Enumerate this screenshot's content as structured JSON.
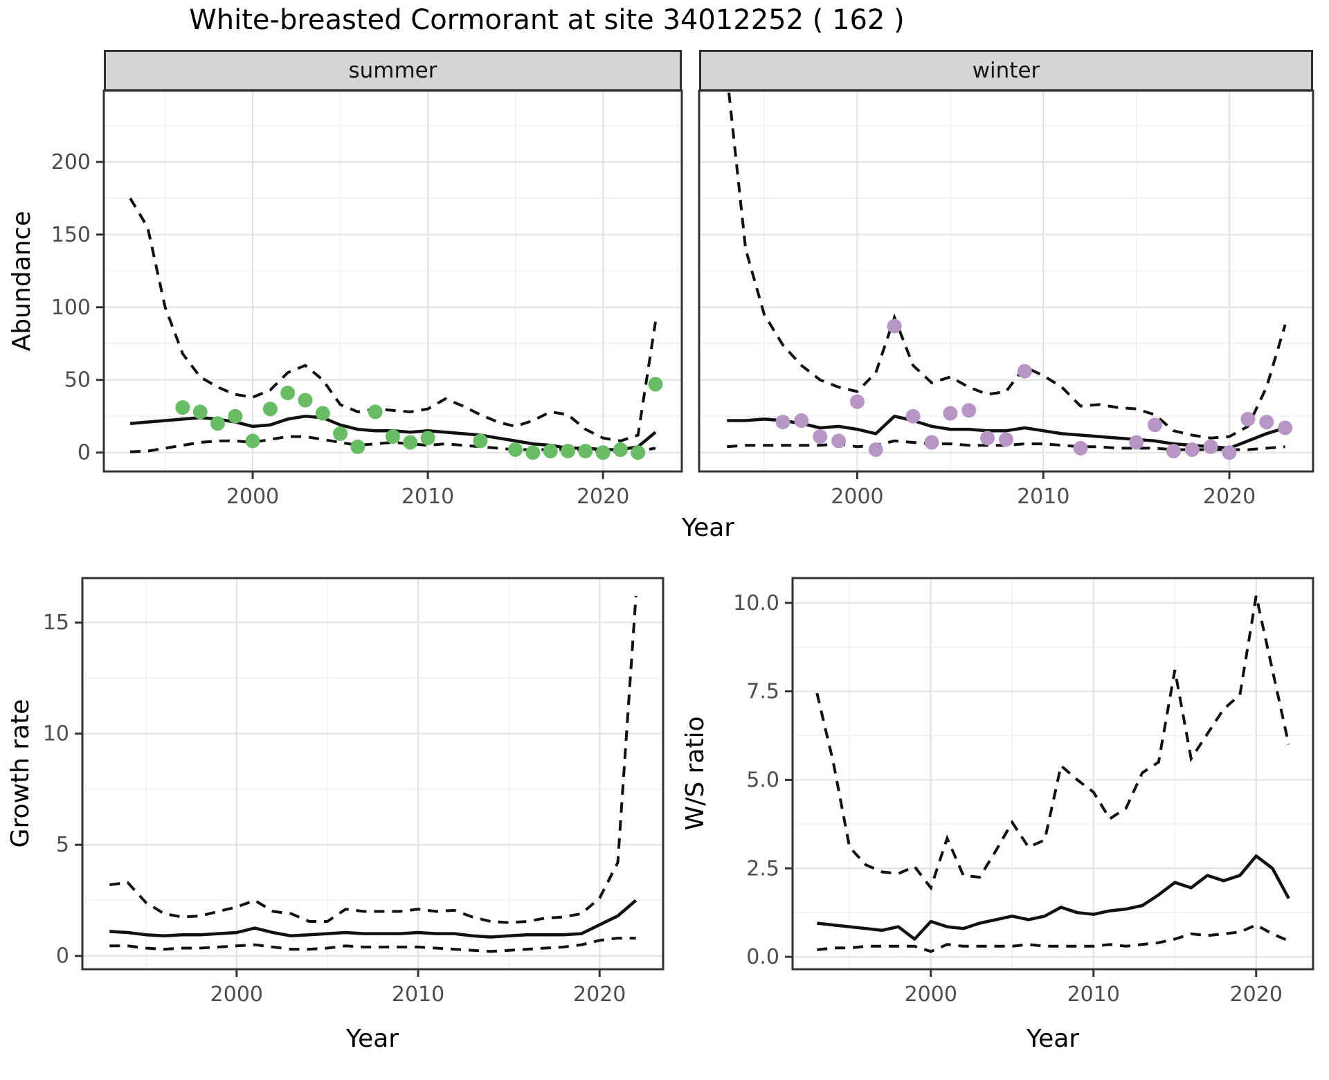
{
  "title": "White-breasted Cormorant at site 34012252 ( 162 )",
  "facets": [
    "summer",
    "winter"
  ],
  "axes": {
    "year": "Year",
    "abundance": "Abundance",
    "growth": "Growth rate",
    "ws": "W/S ratio"
  },
  "style": {
    "summer_point_color": "#68bc64",
    "winter_point_color": "#b795c4",
    "line_color": "#111111",
    "grid_major_color": "#e3e3e3",
    "grid_minor_color": "#f0f0f0",
    "tick_text_color": "#4d4d4d",
    "panel_border_color": "#333333",
    "strip_background": "#d5d5d5"
  },
  "chart_data": [
    {
      "id": "abundance-summer",
      "type": "line",
      "facet": "summer",
      "ylabel": "Abundance",
      "xlabel": "Year",
      "x_domain": [
        1991.5,
        2024.5
      ],
      "y_domain": [
        -13,
        249
      ],
      "x_ticks": [
        2000,
        2010,
        2020
      ],
      "x_tick_labels": [
        "2000",
        "2010",
        "2020"
      ],
      "x_minor": [
        1995,
        2005,
        2015
      ],
      "y_ticks": [
        0,
        50,
        100,
        150,
        200
      ],
      "y_tick_labels": [
        "0",
        "50",
        "100",
        "150",
        "200"
      ],
      "y_minor": [
        25,
        75,
        125,
        175,
        225
      ],
      "point_color": "#68bc64",
      "series": {
        "points": {
          "x": [
            1996,
            1997,
            1998,
            1999,
            2000,
            2001,
            2002,
            2003,
            2004,
            2005,
            2006,
            2007,
            2008,
            2009,
            2010,
            2013,
            2015,
            2016,
            2017,
            2018,
            2019,
            2020,
            2021,
            2022,
            2023
          ],
          "y": [
            31,
            28,
            20,
            25,
            8,
            30,
            41,
            36,
            27,
            13,
            4,
            28,
            11,
            7,
            10,
            8,
            2,
            0,
            1,
            1,
            1,
            0,
            2,
            0,
            47
          ]
        },
        "fit": {
          "x": [
            1993,
            1994,
            1995,
            1996,
            1997,
            1998,
            1999,
            2000,
            2001,
            2002,
            2003,
            2004,
            2005,
            2006,
            2007,
            2008,
            2009,
            2010,
            2011,
            2012,
            2013,
            2014,
            2015,
            2016,
            2017,
            2018,
            2019,
            2020,
            2021,
            2022,
            2023
          ],
          "y": [
            20,
            21,
            22,
            23,
            24,
            23,
            21,
            18,
            19,
            23,
            25,
            24,
            19,
            16,
            15,
            15,
            14,
            15,
            14,
            13,
            12,
            10,
            8,
            6,
            5,
            3,
            3,
            2,
            2,
            4,
            14
          ]
        },
        "upper": {
          "x": [
            1993,
            1994,
            1995,
            1996,
            1997,
            1998,
            1999,
            2000,
            2001,
            2002,
            2003,
            2004,
            2005,
            2006,
            2007,
            2008,
            2009,
            2010,
            2011,
            2012,
            2013,
            2014,
            2015,
            2016,
            2017,
            2018,
            2019,
            2020,
            2021,
            2022,
            2023
          ],
          "y": [
            175,
            155,
            100,
            68,
            52,
            45,
            40,
            38,
            43,
            55,
            60,
            50,
            33,
            28,
            30,
            29,
            28,
            30,
            37,
            32,
            26,
            21,
            18,
            22,
            28,
            26,
            16,
            10,
            8,
            12,
            90
          ]
        },
        "lower": {
          "x": [
            1993,
            1994,
            1995,
            1996,
            1997,
            1998,
            1999,
            2000,
            2001,
            2002,
            2003,
            2004,
            2005,
            2006,
            2007,
            2008,
            2009,
            2010,
            2011,
            2012,
            2013,
            2014,
            2015,
            2016,
            2017,
            2018,
            2019,
            2020,
            2021,
            2022,
            2023
          ],
          "y": [
            0.5,
            1,
            3,
            5,
            7,
            8,
            8,
            7,
            9,
            11,
            11,
            9,
            7,
            5,
            6,
            7,
            6,
            5,
            6,
            5,
            4,
            3,
            2,
            2,
            2,
            2,
            2,
            1,
            1,
            1,
            3
          ]
        }
      }
    },
    {
      "id": "abundance-winter",
      "type": "line",
      "facet": "winter",
      "ylabel": "Abundance",
      "xlabel": "Year",
      "x_domain": [
        1991.5,
        2024.5
      ],
      "y_domain": [
        -13,
        249
      ],
      "x_ticks": [
        2000,
        2010,
        2020
      ],
      "x_tick_labels": [
        "2000",
        "2010",
        "2020"
      ],
      "x_minor": [
        1995,
        2005,
        2015
      ],
      "y_ticks": [
        0,
        50,
        100,
        150,
        200
      ],
      "y_tick_labels": [
        "0",
        "50",
        "100",
        "150",
        "200"
      ],
      "y_minor": [
        25,
        75,
        125,
        175,
        225
      ],
      "point_color": "#b795c4",
      "series": {
        "points": {
          "x": [
            1996,
            1997,
            1998,
            1999,
            2000,
            2001,
            2002,
            2003,
            2004,
            2005,
            2006,
            2007,
            2008,
            2009,
            2012,
            2015,
            2016,
            2017,
            2018,
            2019,
            2020,
            2021,
            2022,
            2023
          ],
          "y": [
            21,
            22,
            11,
            8,
            35,
            2,
            87,
            25,
            7,
            27,
            29,
            10,
            9,
            56,
            3,
            7,
            19,
            1,
            2,
            4,
            0,
            23,
            21,
            17
          ]
        },
        "fit": {
          "x": [
            1993,
            1994,
            1995,
            1996,
            1997,
            1998,
            1999,
            2000,
            2001,
            2002,
            2003,
            2004,
            2005,
            2006,
            2007,
            2008,
            2009,
            2010,
            2011,
            2012,
            2013,
            2014,
            2015,
            2016,
            2017,
            2018,
            2019,
            2020,
            2021,
            2022,
            2023
          ],
          "y": [
            22,
            22,
            23,
            22,
            20,
            17,
            18,
            16,
            13,
            25,
            22,
            18,
            16,
            16,
            15,
            15,
            17,
            15,
            13,
            12,
            11,
            10,
            9,
            8,
            6,
            5,
            4,
            3,
            8,
            13,
            17
          ]
        },
        "upper": {
          "x": [
            1993,
            1994,
            1995,
            1996,
            1997,
            1998,
            1999,
            2000,
            2001,
            2002,
            2003,
            2004,
            2005,
            2006,
            2007,
            2008,
            2009,
            2010,
            2011,
            2012,
            2013,
            2014,
            2015,
            2016,
            2017,
            2018,
            2019,
            2020,
            2021,
            2022,
            2023
          ],
          "y": [
            260,
            140,
            95,
            74,
            60,
            50,
            45,
            42,
            55,
            93,
            60,
            48,
            52,
            45,
            40,
            42,
            59,
            53,
            45,
            32,
            33,
            31,
            30,
            26,
            15,
            12,
            10,
            11,
            18,
            45,
            88
          ]
        },
        "lower": {
          "x": [
            1993,
            1994,
            1995,
            1996,
            1997,
            1998,
            1999,
            2000,
            2001,
            2002,
            2003,
            2004,
            2005,
            2006,
            2007,
            2008,
            2009,
            2010,
            2011,
            2012,
            2013,
            2014,
            2015,
            2016,
            2017,
            2018,
            2019,
            2020,
            2021,
            2022,
            2023
          ],
          "y": [
            4,
            5,
            5,
            5,
            5,
            5,
            6,
            4,
            5,
            8,
            7,
            6,
            6,
            5,
            5,
            5,
            6,
            6,
            5,
            4,
            4,
            3,
            3,
            3,
            2,
            2,
            2,
            2,
            2,
            3,
            4
          ]
        }
      }
    },
    {
      "id": "growth-rate",
      "type": "line",
      "facet": null,
      "ylabel": "Growth rate",
      "xlabel": "Year",
      "x_domain": [
        1991.5,
        2023.5
      ],
      "y_domain": [
        -0.6,
        17.0
      ],
      "x_ticks": [
        2000,
        2010,
        2020
      ],
      "x_tick_labels": [
        "2000",
        "2010",
        "2020"
      ],
      "x_minor": [
        1995,
        2005,
        2015
      ],
      "y_ticks": [
        0,
        5,
        10,
        15
      ],
      "y_tick_labels": [
        "0",
        "5",
        "10",
        "15"
      ],
      "y_minor": [
        2.5,
        7.5,
        12.5
      ],
      "point_color": null,
      "series": {
        "fit": {
          "x": [
            1993,
            1994,
            1995,
            1996,
            1997,
            1998,
            1999,
            2000,
            2001,
            2002,
            2003,
            2004,
            2005,
            2006,
            2007,
            2008,
            2009,
            2010,
            2011,
            2012,
            2013,
            2014,
            2015,
            2016,
            2017,
            2018,
            2019,
            2020,
            2021,
            2022
          ],
          "y": [
            1.1,
            1.05,
            0.95,
            0.9,
            0.95,
            0.95,
            1.0,
            1.05,
            1.25,
            1.05,
            0.9,
            0.95,
            1.0,
            1.05,
            1.0,
            1.0,
            1.0,
            1.05,
            1.0,
            1.0,
            0.9,
            0.85,
            0.9,
            0.95,
            0.95,
            0.95,
            1.0,
            1.4,
            1.8,
            2.5
          ]
        },
        "upper": {
          "x": [
            1993,
            1994,
            1995,
            1996,
            1997,
            1998,
            1999,
            2000,
            2001,
            2002,
            2003,
            2004,
            2005,
            2006,
            2007,
            2008,
            2009,
            2010,
            2011,
            2012,
            2013,
            2014,
            2015,
            2016,
            2017,
            2018,
            2019,
            2020,
            2021,
            2022
          ],
          "y": [
            3.2,
            3.3,
            2.4,
            1.9,
            1.75,
            1.8,
            2.0,
            2.2,
            2.5,
            2.0,
            1.9,
            1.55,
            1.55,
            2.1,
            2.0,
            2.0,
            2.0,
            2.1,
            2.0,
            2.05,
            1.75,
            1.55,
            1.5,
            1.55,
            1.7,
            1.75,
            1.9,
            2.6,
            4.2,
            16.2
          ]
        },
        "lower": {
          "x": [
            1993,
            1994,
            1995,
            1996,
            1997,
            1998,
            1999,
            2000,
            2001,
            2002,
            2003,
            2004,
            2005,
            2006,
            2007,
            2008,
            2009,
            2010,
            2011,
            2012,
            2013,
            2014,
            2015,
            2016,
            2017,
            2018,
            2019,
            2020,
            2021,
            2022
          ],
          "y": [
            0.45,
            0.45,
            0.35,
            0.3,
            0.35,
            0.35,
            0.4,
            0.45,
            0.5,
            0.4,
            0.3,
            0.3,
            0.35,
            0.45,
            0.4,
            0.4,
            0.4,
            0.4,
            0.35,
            0.3,
            0.25,
            0.2,
            0.25,
            0.3,
            0.35,
            0.4,
            0.5,
            0.7,
            0.8,
            0.8
          ]
        }
      }
    },
    {
      "id": "ws-ratio",
      "type": "line",
      "facet": null,
      "ylabel": "W/S ratio",
      "xlabel": "Year",
      "x_domain": [
        1991.5,
        2023.5
      ],
      "y_domain": [
        -0.35,
        10.7
      ],
      "x_ticks": [
        2000,
        2010,
        2020
      ],
      "x_tick_labels": [
        "2000",
        "2010",
        "2020"
      ],
      "x_minor": [
        1995,
        2005,
        2015
      ],
      "y_ticks": [
        0,
        2.5,
        5,
        7.5,
        10
      ],
      "y_tick_labels": [
        "0.0",
        "2.5",
        "5.0",
        "7.5",
        "10.0"
      ],
      "y_minor": [
        1.25,
        3.75,
        6.25,
        8.75
      ],
      "point_color": null,
      "series": {
        "fit": {
          "x": [
            1993,
            1994,
            1995,
            1996,
            1997,
            1998,
            1999,
            2000,
            2001,
            2002,
            2003,
            2004,
            2005,
            2006,
            2007,
            2008,
            2009,
            2010,
            2011,
            2012,
            2013,
            2014,
            2015,
            2016,
            2017,
            2018,
            2019,
            2020,
            2021,
            2022
          ],
          "y": [
            0.95,
            0.9,
            0.85,
            0.8,
            0.75,
            0.85,
            0.5,
            1.0,
            0.85,
            0.8,
            0.95,
            1.05,
            1.15,
            1.05,
            1.15,
            1.4,
            1.25,
            1.2,
            1.3,
            1.35,
            1.45,
            1.75,
            2.1,
            1.95,
            2.3,
            2.15,
            2.3,
            2.85,
            2.5,
            1.65
          ]
        },
        "upper": {
          "x": [
            1993,
            1994,
            1995,
            1996,
            1997,
            1998,
            1999,
            2000,
            2001,
            2002,
            2003,
            2004,
            2005,
            2006,
            2007,
            2008,
            2009,
            2010,
            2011,
            2012,
            2013,
            2014,
            2015,
            2016,
            2017,
            2018,
            2019,
            2020,
            2021,
            2022
          ],
          "y": [
            7.45,
            5.5,
            3.1,
            2.6,
            2.4,
            2.35,
            2.55,
            1.95,
            3.35,
            2.3,
            2.25,
            3.0,
            3.8,
            3.1,
            3.3,
            5.4,
            5.0,
            4.65,
            3.9,
            4.2,
            5.2,
            5.5,
            8.1,
            5.6,
            6.3,
            7.0,
            7.4,
            10.2,
            8.1,
            6.0
          ]
        },
        "lower": {
          "x": [
            1993,
            1994,
            1995,
            1996,
            1997,
            1998,
            1999,
            2000,
            2001,
            2002,
            2003,
            2004,
            2005,
            2006,
            2007,
            2008,
            2009,
            2010,
            2011,
            2012,
            2013,
            2014,
            2015,
            2016,
            2017,
            2018,
            2019,
            2020,
            2021,
            2022
          ],
          "y": [
            0.2,
            0.25,
            0.25,
            0.3,
            0.3,
            0.3,
            0.3,
            0.15,
            0.35,
            0.3,
            0.3,
            0.3,
            0.3,
            0.35,
            0.3,
            0.3,
            0.3,
            0.3,
            0.35,
            0.3,
            0.35,
            0.4,
            0.5,
            0.65,
            0.6,
            0.65,
            0.7,
            0.9,
            0.65,
            0.45
          ]
        }
      }
    }
  ]
}
